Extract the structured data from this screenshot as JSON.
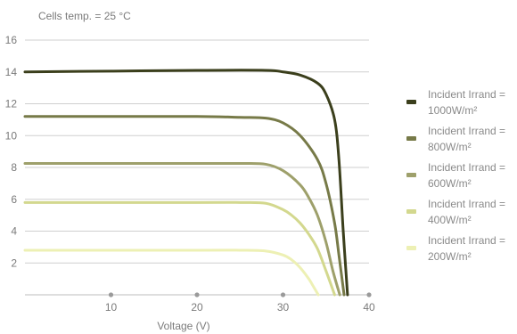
{
  "chart_data": {
    "type": "line",
    "title": "Cells temp. = 25 °C",
    "xlabel": "Voltage (V)",
    "ylabel": "",
    "xlim": [
      0,
      40
    ],
    "ylim": [
      0,
      16
    ],
    "x_ticks": [
      "10",
      "20",
      "30",
      "40"
    ],
    "y_ticks": [
      "2",
      "4",
      "6",
      "8",
      "10",
      "12",
      "14",
      "16"
    ],
    "grid": true,
    "legend_position": "right",
    "series": [
      {
        "name": "Incident Irrand = 1000W/m²",
        "color": "#3b3f1c",
        "x": [
          0,
          10,
          20,
          28,
          30,
          32,
          34,
          35,
          36,
          36.5,
          37,
          37.5
        ],
        "y": [
          14.0,
          14.05,
          14.1,
          14.1,
          14.0,
          13.8,
          13.3,
          12.6,
          11.0,
          8.5,
          4.0,
          0
        ]
      },
      {
        "name": "Incident Irrand = 800W/m²",
        "color": "#777a48",
        "x": [
          0,
          10,
          20,
          25,
          28,
          30,
          32,
          34,
          35,
          36,
          36.5,
          37.1
        ],
        "y": [
          11.2,
          11.2,
          11.2,
          11.15,
          11.1,
          10.8,
          10.0,
          8.5,
          7.0,
          4.5,
          2.5,
          0
        ]
      },
      {
        "name": "Incident Irrand = 600W/m²",
        "color": "#9ea06b",
        "x": [
          0,
          10,
          20,
          25,
          28,
          30,
          32,
          33,
          34,
          35,
          35.8,
          36.6
        ],
        "y": [
          8.25,
          8.25,
          8.25,
          8.25,
          8.2,
          7.8,
          6.9,
          6.1,
          5.0,
          3.3,
          1.5,
          0
        ]
      },
      {
        "name": "Incident Irrand = 400W/m²",
        "color": "#d3d88e",
        "x": [
          0,
          10,
          20,
          25,
          28,
          30,
          31,
          32,
          33,
          34,
          35,
          36
        ],
        "y": [
          5.8,
          5.8,
          5.8,
          5.8,
          5.75,
          5.35,
          5.0,
          4.5,
          3.8,
          2.9,
          1.5,
          0
        ]
      },
      {
        "name": "Incident Irrand = 200W/m²",
        "color": "#edf0b4",
        "x": [
          0,
          10,
          20,
          25,
          28,
          30,
          31,
          32,
          33,
          33.5,
          34.1
        ],
        "y": [
          2.8,
          2.8,
          2.8,
          2.8,
          2.75,
          2.5,
          2.2,
          1.7,
          1.0,
          0.55,
          0
        ]
      }
    ]
  }
}
